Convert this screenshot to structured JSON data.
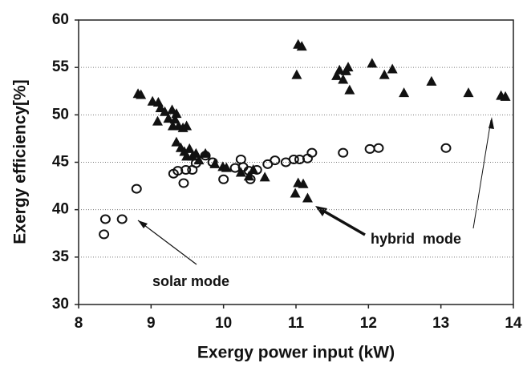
{
  "chart_data": {
    "type": "scatter",
    "x_label": "Exergy power input (kW)",
    "y_label": "Exergy efficiency[%]",
    "xlim": [
      8,
      14
    ],
    "xticks": [
      8,
      9,
      10,
      11,
      12,
      13,
      14
    ],
    "ylim": [
      30,
      60
    ],
    "yticks": [
      30,
      35,
      40,
      45,
      50,
      55,
      60
    ],
    "grid": true,
    "series": [
      {
        "name": "solar mode",
        "marker": "circle",
        "color": "#111111",
        "x": [
          8.35,
          8.37,
          8.6,
          8.8,
          9.31,
          9.37,
          9.45,
          9.48,
          9.57,
          9.62,
          9.75,
          9.85,
          10.0,
          10.16,
          10.24,
          10.27,
          10.35,
          10.37,
          10.46,
          10.61,
          10.71,
          10.86,
          10.97,
          11.05,
          11.16,
          11.22,
          11.65,
          12.02,
          12.14,
          13.07
        ],
        "values": [
          37.4,
          39.0,
          39.0,
          42.2,
          43.8,
          44.1,
          42.8,
          44.2,
          44.2,
          44.9,
          45.7,
          45.0,
          43.2,
          44.4,
          45.3,
          44.5,
          44.1,
          43.2,
          44.2,
          44.8,
          45.2,
          45.0,
          45.3,
          45.3,
          45.4,
          46.0,
          46.0,
          46.4,
          46.5,
          46.5
        ]
      },
      {
        "name": "hybrid  mode",
        "marker": "triangle",
        "color": "#111111",
        "x": [
          8.82,
          8.86,
          9.02,
          9.1,
          9.13,
          9.09,
          9.19,
          9.24,
          9.29,
          9.33,
          9.35,
          9.3,
          9.38,
          9.44,
          9.49,
          9.35,
          9.41,
          9.46,
          9.53,
          9.49,
          9.57,
          9.62,
          9.66,
          9.75,
          9.88,
          9.99,
          10.04,
          10.24,
          10.35,
          10.41,
          10.57,
          11.03,
          11.08,
          11.01,
          11.03,
          11.1,
          10.99,
          11.16,
          11.56,
          11.6,
          11.69,
          11.65,
          11.72,
          11.74,
          12.05,
          12.22,
          12.33,
          12.49,
          12.87,
          13.38,
          13.83,
          13.89
        ],
        "values": [
          52.2,
          52.1,
          51.4,
          51.3,
          50.7,
          49.3,
          50.3,
          49.6,
          50.5,
          49.5,
          50.1,
          48.8,
          48.8,
          48.6,
          48.8,
          47.1,
          46.5,
          46.1,
          46.4,
          45.6,
          45.6,
          45.9,
          45.2,
          45.9,
          44.8,
          44.5,
          44.4,
          43.9,
          43.5,
          44.2,
          43.4,
          57.4,
          57.2,
          54.2,
          42.8,
          42.7,
          41.7,
          41.2,
          54.1,
          54.7,
          54.6,
          53.7,
          55.0,
          52.6,
          55.4,
          54.2,
          54.8,
          52.3,
          53.5,
          52.3,
          52.0,
          51.9
        ]
      }
    ]
  }
}
